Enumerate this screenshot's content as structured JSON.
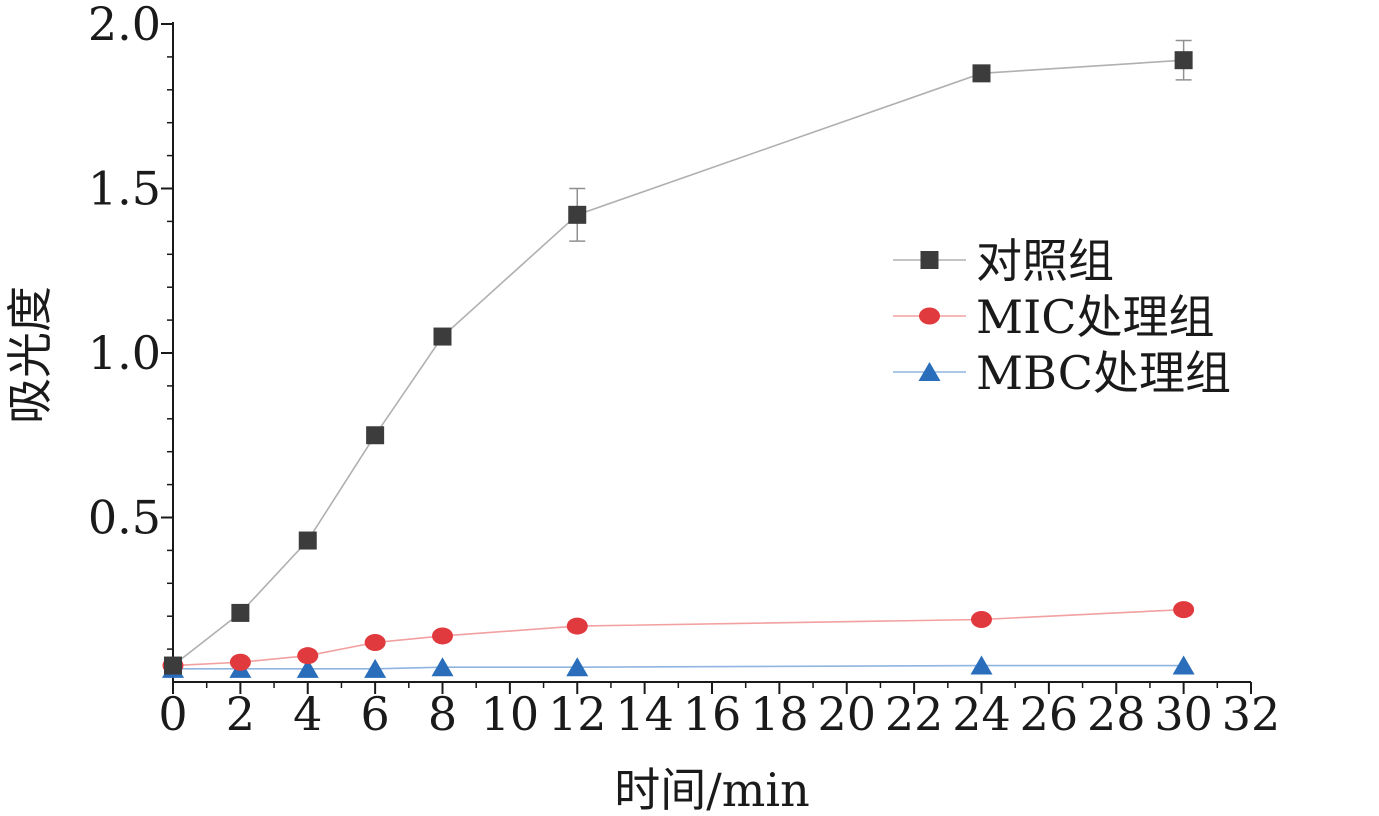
{
  "chart_data": {
    "type": "line",
    "xlabel": "时间/min",
    "ylabel": "吸光度",
    "xlim": [
      0,
      32
    ],
    "ylim": [
      0,
      2.0
    ],
    "xticks": [
      "0",
      "2",
      "4",
      "6",
      "8",
      "10",
      "12",
      "14",
      "16",
      "18",
      "20",
      "22",
      "24",
      "26",
      "28",
      "30",
      "32"
    ],
    "yticks": [
      "0.5",
      "1.0",
      "1.5",
      "2.0"
    ],
    "legend_position": "right",
    "grid": false,
    "x": [
      0,
      2,
      4,
      6,
      8,
      12,
      24,
      30
    ],
    "series": [
      {
        "name": "对照组",
        "color": "#3c3c3c",
        "line_color": "#b0b0b0",
        "marker": "square",
        "values": [
          0.05,
          0.21,
          0.43,
          0.75,
          1.05,
          1.42,
          1.85,
          1.89
        ],
        "errors": [
          0,
          0,
          0,
          0,
          0.02,
          0.08,
          0.02,
          0.06
        ]
      },
      {
        "name": "MIC处理组",
        "color": "#e03a3e",
        "line_color": "#f2a0a0",
        "marker": "circle",
        "values": [
          0.05,
          0.06,
          0.08,
          0.12,
          0.14,
          0.17,
          0.19,
          0.22
        ],
        "errors": [
          0,
          0,
          0,
          0,
          0,
          0,
          0,
          0
        ]
      },
      {
        "name": "MBC处理组",
        "color": "#2a6ebb",
        "line_color": "#8fb5e0",
        "marker": "triangle",
        "values": [
          0.04,
          0.04,
          0.04,
          0.04,
          0.045,
          0.045,
          0.05,
          0.05
        ],
        "errors": [
          0,
          0,
          0,
          0,
          0,
          0,
          0,
          0
        ]
      }
    ]
  }
}
